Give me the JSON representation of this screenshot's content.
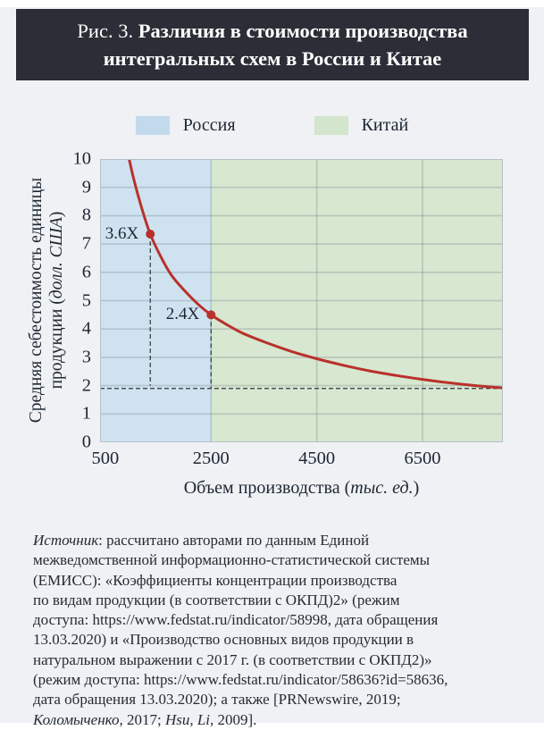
{
  "page": {
    "background": "#eff1f5",
    "top_strip": "#ffffff"
  },
  "header": {
    "bg": "#2b2e36",
    "text_color": "#ffffff",
    "title_lines": [
      [
        {
          "t": "Рис. 3. "
        },
        {
          "t": "Различия в стоимости производства",
          "b": true
        }
      ],
      [
        {
          "t": "интегральных схем в России и Китае",
          "b": true
        }
      ]
    ]
  },
  "legend": {
    "items": [
      {
        "label": "Россия",
        "color": "#c3d9ec"
      },
      {
        "label": "Китай",
        "color": "#d3e5cc"
      }
    ]
  },
  "chart_data": {
    "type": "line",
    "title": "Рис. 3. Различия в стоимости производства интегральных схем в России и Китае",
    "xlabel": "Объем производства (тыс. ед.)",
    "ylabel": "Средняя себестоимость единицы продукции (долл. США)",
    "xlabel_segments": [
      {
        "t": "Объем производства ("
      },
      {
        "t": "тыс. ед.",
        "i": true
      },
      {
        "t": ")"
      }
    ],
    "ylabel_segments": [
      [
        {
          "t": "Средняя себестоимость единицы"
        }
      ],
      [
        {
          "t": "продукции ("
        },
        {
          "t": "долл. США",
          "i": true
        },
        {
          "t": ")"
        }
      ]
    ],
    "xlim": [
      400,
      8020
    ],
    "ylim": [
      0,
      10
    ],
    "xticks": [
      500,
      2500,
      4500,
      6500
    ],
    "yticks": [
      0,
      1,
      2,
      3,
      4,
      5,
      6,
      7,
      8,
      9,
      10
    ],
    "vgrid": [
      2500,
      4500,
      6500
    ],
    "hgrid": [
      1,
      2,
      3,
      4,
      5,
      6,
      7,
      8,
      9
    ],
    "grid_color": "rgba(100,115,125,0.28)",
    "border_color": "#b4c0c9",
    "regions": [
      {
        "name": "Россия",
        "from": 400,
        "to": 2500,
        "color": "#cfe2f0"
      },
      {
        "name": "Китай",
        "from": 2500,
        "to": 8020,
        "color": "#d7e7d0"
      }
    ],
    "series": [
      {
        "name": "Средняя себестоимость единицы продукции",
        "color": "#b8312b",
        "width": 3,
        "points": [
          [
            950,
            10.0
          ],
          [
            1050,
            9.2
          ],
          [
            1200,
            8.2
          ],
          [
            1350,
            7.35
          ],
          [
            1550,
            6.55
          ],
          [
            1750,
            5.9
          ],
          [
            2000,
            5.35
          ],
          [
            2250,
            4.88
          ],
          [
            2500,
            4.5
          ],
          [
            2800,
            4.15
          ],
          [
            3100,
            3.85
          ],
          [
            3500,
            3.55
          ],
          [
            4000,
            3.22
          ],
          [
            4500,
            2.95
          ],
          [
            5000,
            2.72
          ],
          [
            5500,
            2.52
          ],
          [
            6000,
            2.36
          ],
          [
            6500,
            2.22
          ],
          [
            7000,
            2.1
          ],
          [
            7500,
            2.0
          ],
          [
            8020,
            1.92
          ]
        ]
      }
    ],
    "markers": [
      {
        "x": 1350,
        "y": 7.35,
        "label": "3.6X"
      },
      {
        "x": 2500,
        "y": 4.5,
        "label": "2.4X"
      }
    ],
    "droplines": [
      {
        "x": 1350,
        "y_from": 7.35,
        "y_to": 2.0
      },
      {
        "x": 2500,
        "y_from": 4.5,
        "y_to": 1.9
      }
    ],
    "baseline_y": 1.9,
    "dash_color": "#30363d"
  },
  "source": {
    "lines": [
      [
        {
          "t": "Источник",
          "i": true
        },
        {
          "t": ": рассчитано авторами по данным Единой"
        }
      ],
      [
        {
          "t": "межведомственной информационно-статистической системы"
        }
      ],
      [
        {
          "t": "(ЕМИСС): «Коэффициенты концентрации производства"
        }
      ],
      [
        {
          "t": "по видам продукции (в соответствии с ОКПД)2» (режим"
        }
      ],
      [
        {
          "t": "доступа: https://www.fedstat.ru/indicator/58998, дата обращения"
        }
      ],
      [
        {
          "t": "13.03.2020) и «Производство основных видов продукции в"
        }
      ],
      [
        {
          "t": "натуральном выражении с 2017 г. (в соответствии с ОКПД2)»"
        }
      ],
      [
        {
          "t": "(режим доступа: https://www.fedstat.ru/indicator/58636?id=58636,"
        }
      ],
      [
        {
          "t": "дата обращения 13.03.2020); а также [PRNewswire, 2019;"
        }
      ],
      [
        {
          "t": "Коломыченко",
          "i": true
        },
        {
          "t": ", 2017; "
        },
        {
          "t": "Hsu, Li",
          "i": true
        },
        {
          "t": ", 2009]."
        }
      ]
    ]
  }
}
